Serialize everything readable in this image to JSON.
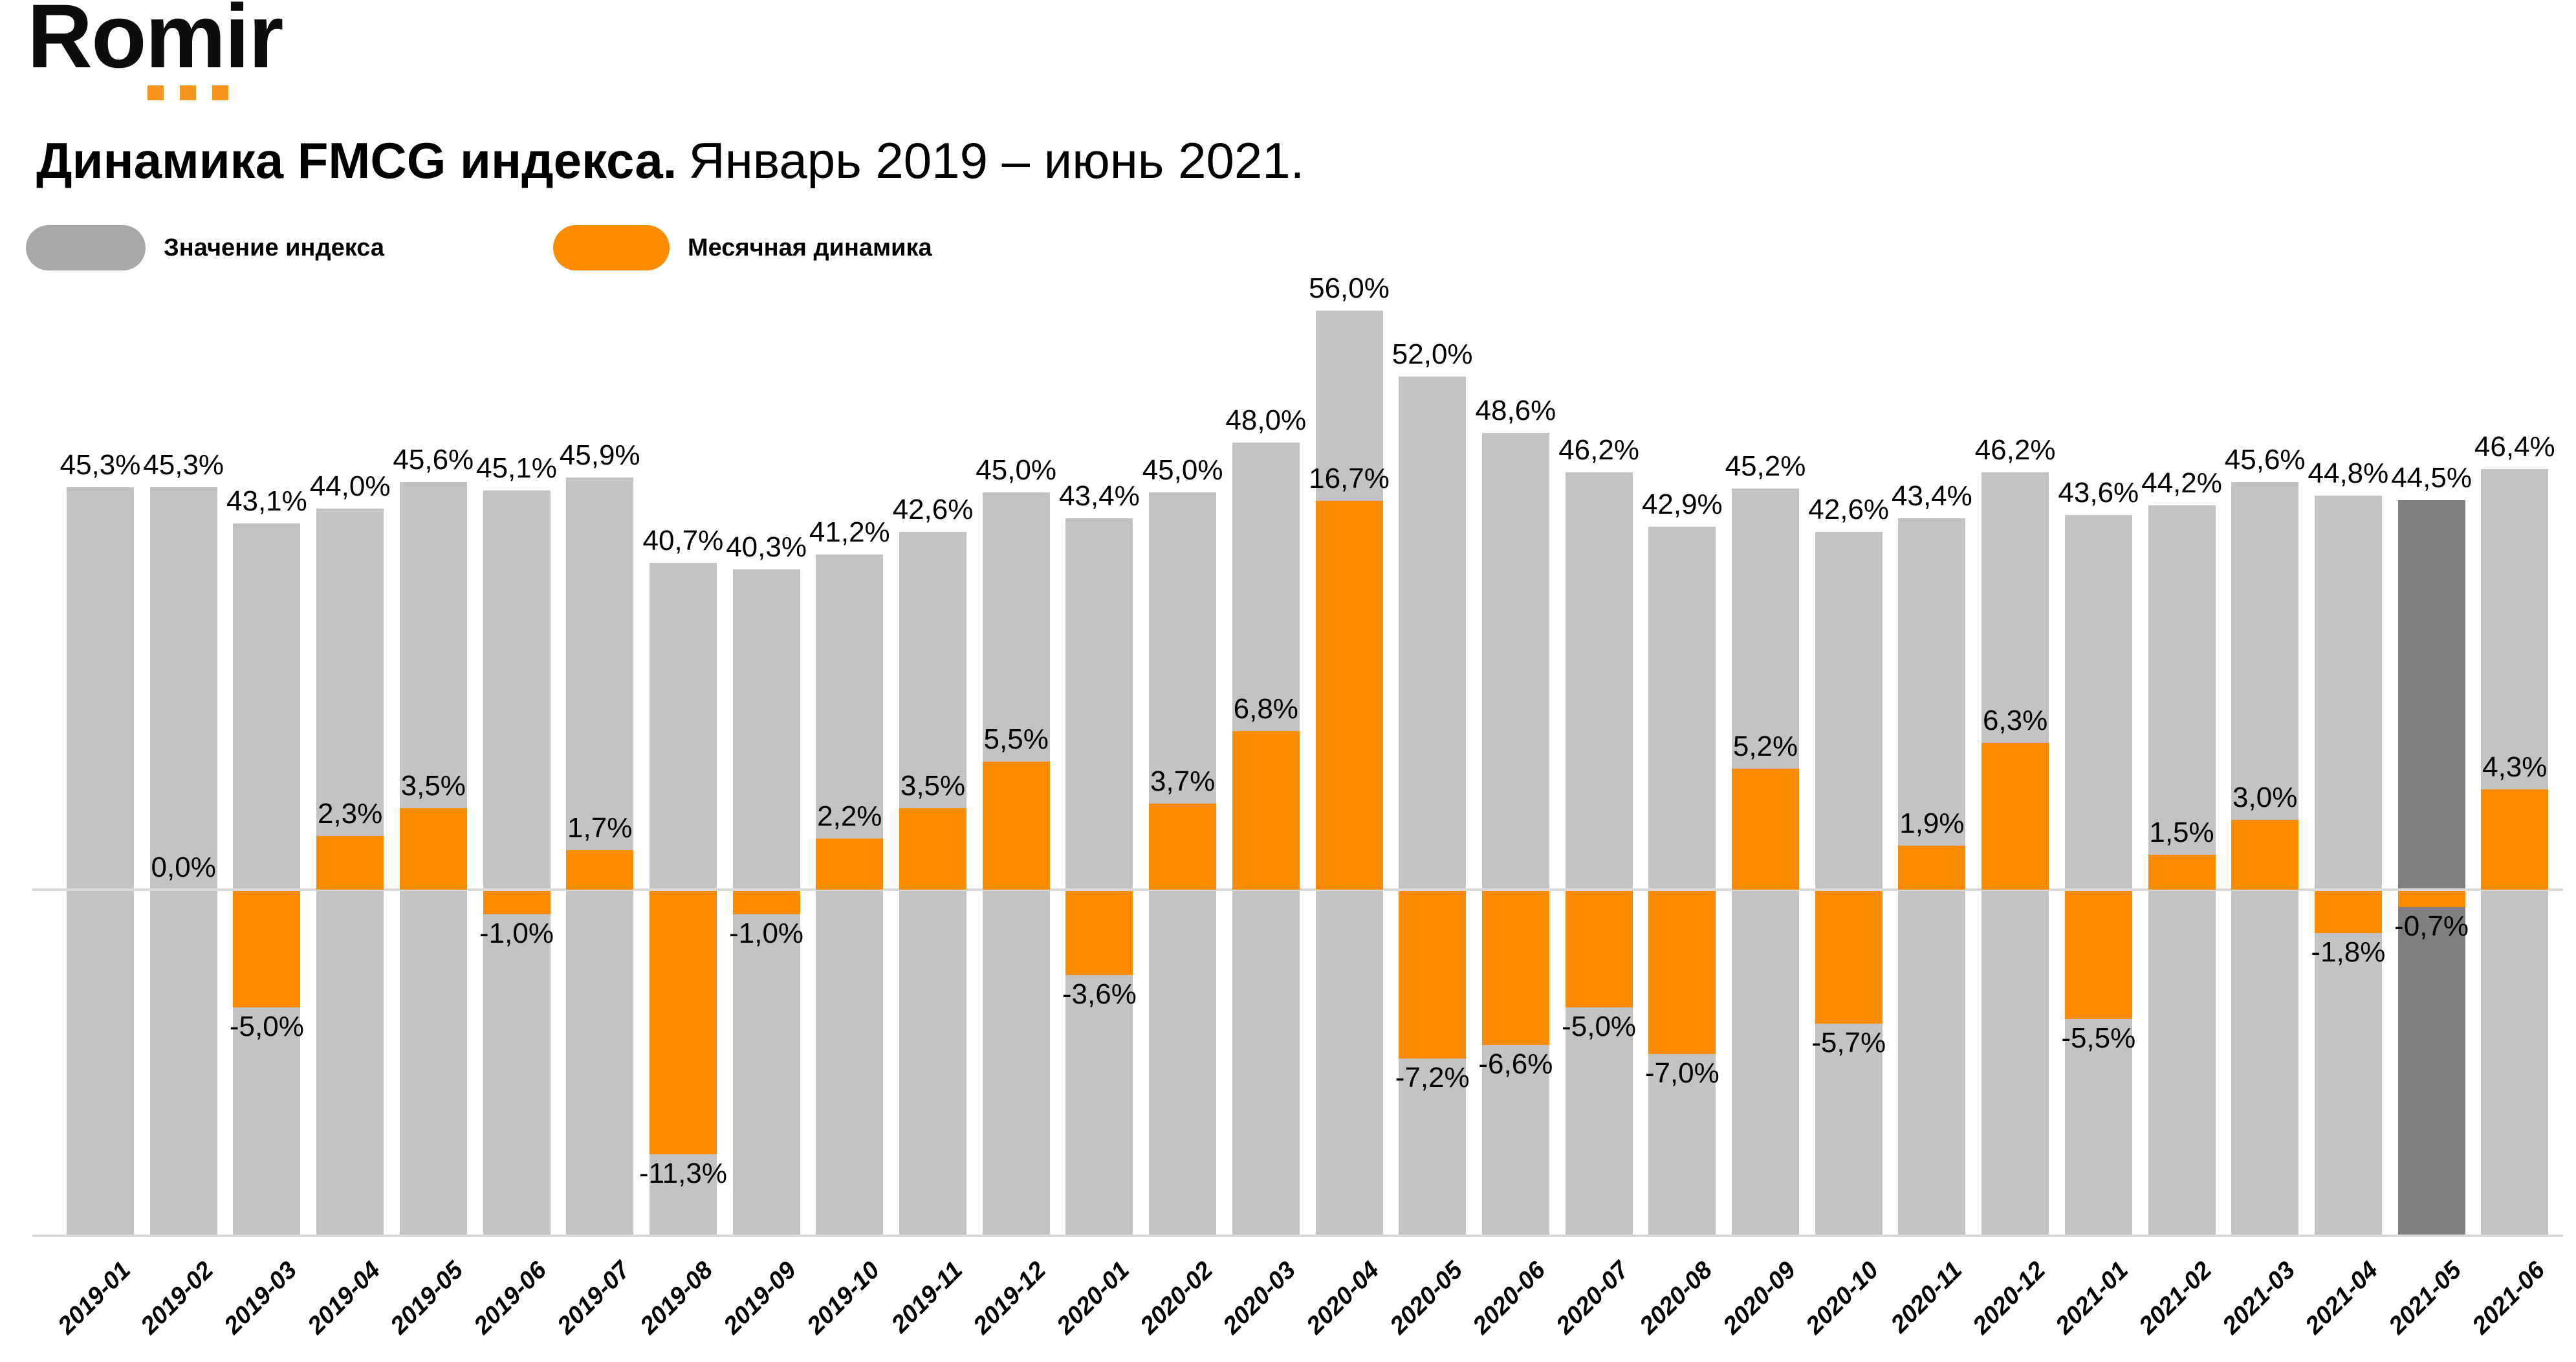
{
  "logo": {
    "text": "Romir",
    "dots_icon": "three-orange-squares"
  },
  "title": {
    "bold": "Динамика FMCG индекса.",
    "regular": "Январь 2019 – июнь 2021."
  },
  "legend": [
    {
      "label": "Значение индекса",
      "color": "#A8A8A8"
    },
    {
      "label": "Месячная динамика",
      "color": "#FB8B00"
    }
  ],
  "colors": {
    "index_bar": "#C3C3C3",
    "index_bar_highlight": "#7F7F7F",
    "dynamic_bar": "#FB8B00",
    "axis_line": "#D9D9D9",
    "logo_dot": "#F7941E",
    "text": "#000000",
    "background": "#FFFFFF"
  },
  "chart_data": {
    "type": "bar",
    "title": "Динамика FMCG индекса. Январь 2019 – июнь 2021.",
    "xlabel": "",
    "ylabel": "",
    "grid": false,
    "legend_position": "top-left",
    "ylim_index": [
      0,
      60
    ],
    "ylim_dynamics": [
      -12,
      17
    ],
    "highlight_category": "2021-05",
    "categories": [
      "2019-01",
      "2019-02",
      "2019-03",
      "2019-04",
      "2019-05",
      "2019-06",
      "2019-07",
      "2019-08",
      "2019-09",
      "2019-10",
      "2019-11",
      "2019-12",
      "2020-01",
      "2020-02",
      "2020-03",
      "2020-04",
      "2020-05",
      "2020-06",
      "2020-07",
      "2020-08",
      "2020-09",
      "2020-10",
      "2020-11",
      "2020-12",
      "2021-01",
      "2021-02",
      "2021-03",
      "2021-04",
      "2021-05",
      "2021-06"
    ],
    "series": [
      {
        "name": "Значение индекса",
        "values": [
          45.3,
          45.3,
          43.1,
          44.0,
          45.6,
          45.1,
          45.9,
          40.7,
          40.3,
          41.2,
          42.6,
          45.0,
          43.4,
          45.0,
          48.0,
          56.0,
          52.0,
          48.6,
          46.2,
          42.9,
          45.2,
          42.6,
          43.4,
          46.2,
          43.6,
          44.2,
          45.6,
          44.8,
          44.5,
          46.4
        ],
        "labels": [
          "45,3%",
          "45,3%",
          "43,1%",
          "44,0%",
          "45,6%",
          "45,1%",
          "45,9%",
          "40,7%",
          "40,3%",
          "41,2%",
          "42,6%",
          "45,0%",
          "43,4%",
          "45,0%",
          "48,0%",
          "56,0%",
          "52,0%",
          "48,6%",
          "46,2%",
          "42,9%",
          "45,2%",
          "42,6%",
          "43,4%",
          "46,2%",
          "43,6%",
          "44,2%",
          "45,6%",
          "44,8%",
          "44,5%",
          "46,4%"
        ]
      },
      {
        "name": "Месячная динамика",
        "values": [
          null,
          0.0,
          -5.0,
          2.3,
          3.5,
          -1.0,
          1.7,
          -11.3,
          -1.0,
          2.2,
          3.5,
          5.5,
          -3.6,
          3.7,
          6.8,
          16.7,
          -7.2,
          -6.6,
          -5.0,
          -7.0,
          5.2,
          -5.7,
          1.9,
          6.3,
          -5.5,
          1.5,
          3.0,
          -1.8,
          -0.7,
          4.3
        ],
        "labels": [
          null,
          "0,0%",
          "-5,0%",
          "2,3%",
          "3,5%",
          "-1,0%",
          "1,7%",
          "-11,3%",
          "-1,0%",
          "2,2%",
          "3,5%",
          "5,5%",
          "-3,6%",
          "3,7%",
          "6,8%",
          "16,7%",
          "-7,2%",
          "-6,6%",
          "-5,0%",
          "-7,0%",
          "5,2%",
          "-5,7%",
          "1,9%",
          "6,3%",
          "-5,5%",
          "1,5%",
          "3,0%",
          "-1,8%",
          "-0,7%",
          "4,3%"
        ]
      }
    ]
  }
}
